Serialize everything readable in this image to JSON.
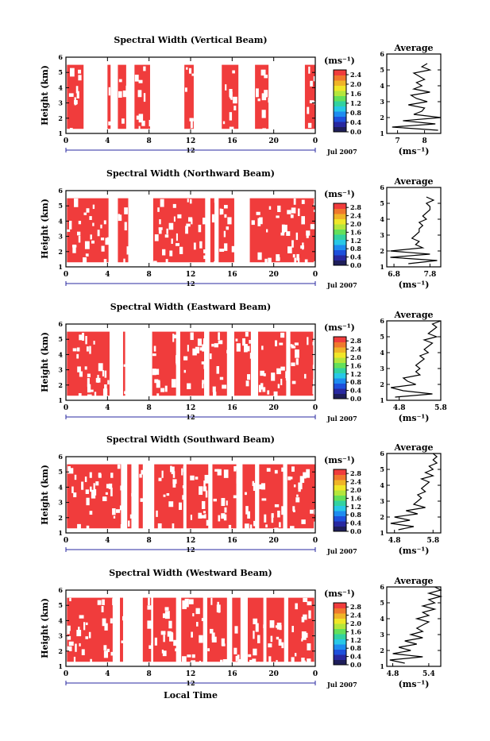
{
  "figure": {
    "xlabel": "Local Time",
    "date_label": "Jul 2007",
    "date_marker": "12",
    "ylabel": "Height (km)",
    "unit_label": "(ms⁻¹)",
    "avg_title": "Average",
    "avg_xlabel": "(ms⁻¹)",
    "fill_color": "#f03c3c"
  },
  "chart_data": [
    {
      "type": "heatmap",
      "title": "Spectral Width (Vertical Beam)",
      "x_ticks": [
        "0",
        "4",
        "8",
        "12",
        "16",
        "20",
        "0"
      ],
      "y_ticks": [
        "1",
        "2",
        "3",
        "4",
        "5",
        "6"
      ],
      "xlim": [
        0,
        24
      ],
      "ylim": [
        1,
        6
      ],
      "colorbar": {
        "ticks": [
          "0.0",
          "0.4",
          "0.8",
          "1.2",
          "1.6",
          "2.0",
          "2.4"
        ],
        "range": [
          0,
          2.6
        ]
      },
      "data_ymax": 5.5,
      "columns": [
        [
          0.1,
          1.7
        ],
        [
          4.0,
          4.3
        ],
        [
          5.0,
          5.8
        ],
        [
          6.6,
          8.1
        ],
        [
          11.4,
          12.3
        ],
        [
          15.0,
          16.6
        ],
        [
          18.2,
          19.5
        ],
        [
          23.0,
          24.0
        ]
      ],
      "average": {
        "x_ticks": [
          "7",
          "8"
        ],
        "xlim": [
          6.6,
          8.6
        ],
        "y_ticks": [
          "1",
          "2",
          "3",
          "4",
          "5",
          "6"
        ],
        "ylim": [
          1,
          6
        ],
        "profile_y": [
          1.2,
          1.4,
          1.6,
          1.8,
          2.0,
          2.2,
          2.4,
          2.6,
          2.8,
          3.0,
          3.2,
          3.4,
          3.6,
          3.8,
          4.0,
          4.2,
          4.4,
          4.6,
          4.8,
          5.0,
          5.2,
          5.4
        ],
        "profile_x": [
          8.5,
          6.8,
          8.4,
          7.2,
          8.6,
          7.6,
          7.9,
          8.0,
          7.4,
          8.1,
          7.7,
          7.5,
          8.2,
          7.6,
          7.9,
          7.7,
          8.0,
          7.8,
          7.6,
          8.2,
          7.9,
          8.1
        ]
      }
    },
    {
      "type": "heatmap",
      "title": "Spectral Width (Northward Beam)",
      "x_ticks": [
        "0",
        "4",
        "8",
        "12",
        "16",
        "20",
        "0"
      ],
      "y_ticks": [
        "1",
        "2",
        "3",
        "4",
        "5",
        "6"
      ],
      "xlim": [
        0,
        24
      ],
      "ylim": [
        1,
        6
      ],
      "colorbar": {
        "ticks": [
          "0.0",
          "0.4",
          "0.8",
          "1.2",
          "1.6",
          "2.0",
          "2.4",
          "2.8"
        ],
        "range": [
          0,
          3.0
        ]
      },
      "data_ymax": 5.5,
      "columns": [
        [
          0.1,
          4.1
        ],
        [
          5.0,
          6.0
        ],
        [
          8.4,
          13.4
        ],
        [
          13.9,
          14.3
        ],
        [
          14.7,
          16.2
        ],
        [
          17.7,
          24.0
        ]
      ],
      "average": {
        "x_ticks": [
          "6.8",
          "7.8"
        ],
        "xlim": [
          6.6,
          8.1
        ],
        "y_ticks": [
          "1",
          "2",
          "3",
          "4",
          "5",
          "6"
        ],
        "ylim": [
          1,
          6
        ],
        "profile_y": [
          1.2,
          1.4,
          1.6,
          1.8,
          2.0,
          2.2,
          2.4,
          2.6,
          2.8,
          3.0,
          3.2,
          3.4,
          3.6,
          3.8,
          4.0,
          4.2,
          4.4,
          4.6,
          4.8,
          5.0,
          5.2,
          5.4
        ],
        "profile_x": [
          7.2,
          8.0,
          6.7,
          7.8,
          6.7,
          7.6,
          7.4,
          7.5,
          7.3,
          7.4,
          7.5,
          7.5,
          7.6,
          7.5,
          7.7,
          7.6,
          7.7,
          7.8,
          7.8,
          7.7,
          7.9,
          7.7
        ]
      }
    },
    {
      "type": "heatmap",
      "title": "Spectral Width (Eastward Beam)",
      "x_ticks": [
        "0",
        "4",
        "8",
        "12",
        "16",
        "20",
        "0"
      ],
      "y_ticks": [
        "1",
        "2",
        "3",
        "4",
        "5",
        "6"
      ],
      "xlim": [
        0,
        24
      ],
      "ylim": [
        1,
        6
      ],
      "colorbar": {
        "ticks": [
          "0.0",
          "0.4",
          "0.8",
          "1.2",
          "1.6",
          "2.0",
          "2.4",
          "2.8"
        ],
        "range": [
          0,
          3.0
        ]
      },
      "data_ymax": 5.5,
      "columns": [
        [
          0.1,
          4.2
        ],
        [
          5.5,
          5.7
        ],
        [
          8.3,
          10.6
        ],
        [
          11.0,
          13.3
        ],
        [
          13.8,
          15.5
        ],
        [
          16.2,
          17.8
        ],
        [
          18.5,
          21.2
        ],
        [
          21.6,
          23.8
        ]
      ],
      "average": {
        "x_ticks": [
          "4.8",
          "5.8"
        ],
        "xlim": [
          4.5,
          5.8
        ],
        "y_ticks": [
          "1",
          "2",
          "3",
          "4",
          "5",
          "6"
        ],
        "ylim": [
          1,
          6
        ],
        "profile_y": [
          1.2,
          1.4,
          1.6,
          1.8,
          2.0,
          2.2,
          2.4,
          2.6,
          2.8,
          3.0,
          3.2,
          3.4,
          3.6,
          3.8,
          4.0,
          4.2,
          4.4,
          4.6,
          4.8,
          5.0,
          5.2,
          5.4,
          5.6,
          5.8,
          6.0
        ],
        "profile_x": [
          4.7,
          5.6,
          4.9,
          4.6,
          5.2,
          5.0,
          4.9,
          5.3,
          5.2,
          5.3,
          5.2,
          5.3,
          5.4,
          5.3,
          5.5,
          5.4,
          5.5,
          5.6,
          5.4,
          5.7,
          5.5,
          5.6,
          5.7,
          5.6,
          5.8
        ]
      }
    },
    {
      "type": "heatmap",
      "title": "Spectral Width (Southward Beam)",
      "x_ticks": [
        "0",
        "4",
        "8",
        "12",
        "16",
        "20",
        "0"
      ],
      "y_ticks": [
        "1",
        "2",
        "3",
        "4",
        "5",
        "6"
      ],
      "xlim": [
        0,
        24
      ],
      "ylim": [
        1,
        6
      ],
      "colorbar": {
        "ticks": [
          "0.0",
          "0.4",
          "0.8",
          "1.2",
          "1.6",
          "2.0",
          "2.4",
          "2.8"
        ],
        "range": [
          0,
          3.0
        ]
      },
      "data_ymax": 5.5,
      "columns": [
        [
          0.1,
          5.3
        ],
        [
          5.9,
          6.3
        ],
        [
          7.0,
          7.4
        ],
        [
          8.5,
          11.3
        ],
        [
          11.6,
          13.7
        ],
        [
          14.1,
          16.4
        ],
        [
          17.0,
          18.2
        ],
        [
          18.6,
          20.9
        ],
        [
          21.3,
          24.0
        ]
      ],
      "average": {
        "x_ticks": [
          "4.8",
          "5.8"
        ],
        "xlim": [
          4.6,
          6.0
        ],
        "y_ticks": [
          "1",
          "2",
          "3",
          "4",
          "5",
          "6"
        ],
        "ylim": [
          1,
          6
        ],
        "profile_y": [
          1.2,
          1.4,
          1.6,
          1.8,
          2.0,
          2.2,
          2.4,
          2.6,
          2.8,
          3.0,
          3.2,
          3.4,
          3.6,
          3.8,
          4.0,
          4.2,
          4.4,
          4.6,
          4.8,
          5.0,
          5.2,
          5.4,
          5.6,
          5.8,
          6.0
        ],
        "profile_x": [
          4.9,
          5.3,
          4.7,
          5.2,
          4.8,
          5.4,
          5.1,
          5.6,
          5.3,
          5.4,
          5.5,
          5.4,
          5.6,
          5.5,
          5.6,
          5.7,
          5.5,
          5.8,
          5.6,
          5.8,
          5.7,
          5.9,
          5.8,
          5.9,
          5.8
        ]
      }
    },
    {
      "type": "heatmap",
      "title": "Spectral Width (Westward Beam)",
      "x_ticks": [
        "0",
        "4",
        "8",
        "12",
        "16",
        "20",
        "0"
      ],
      "y_ticks": [
        "1",
        "2",
        "3",
        "4",
        "5",
        "6"
      ],
      "xlim": [
        0,
        24
      ],
      "ylim": [
        1,
        6
      ],
      "colorbar": {
        "ticks": [
          "0.0",
          "0.4",
          "0.8",
          "1.2",
          "1.6",
          "2.0",
          "2.4",
          "2.8"
        ],
        "range": [
          0,
          3.0
        ]
      },
      "data_ymax": 5.5,
      "columns": [
        [
          0.1,
          4.5
        ],
        [
          5.2,
          5.5
        ],
        [
          7.4,
          8.2
        ],
        [
          8.4,
          10.6
        ],
        [
          11.1,
          13.2
        ],
        [
          13.6,
          15.5
        ],
        [
          16.0,
          16.8
        ],
        [
          17.5,
          19.0
        ],
        [
          19.3,
          21.0
        ],
        [
          21.4,
          23.9
        ]
      ],
      "average": {
        "x_ticks": [
          "4.8",
          "5.4"
        ],
        "xlim": [
          4.7,
          5.6
        ],
        "y_ticks": [
          "1",
          "2",
          "3",
          "4",
          "5",
          "6"
        ],
        "ylim": [
          1,
          6
        ],
        "profile_y": [
          1.2,
          1.4,
          1.6,
          1.8,
          2.0,
          2.2,
          2.4,
          2.6,
          2.8,
          3.0,
          3.2,
          3.4,
          3.6,
          3.8,
          4.0,
          4.2,
          4.4,
          4.6,
          4.8,
          5.0,
          5.2,
          5.4,
          5.6,
          5.8,
          6.0
        ],
        "profile_x": [
          5.0,
          4.75,
          5.3,
          4.8,
          5.1,
          4.9,
          5.2,
          5.0,
          5.3,
          5.1,
          5.3,
          5.2,
          5.3,
          5.4,
          5.2,
          5.4,
          5.3,
          5.5,
          5.3,
          5.5,
          5.4,
          5.6,
          5.4,
          5.6,
          5.5
        ]
      }
    }
  ]
}
